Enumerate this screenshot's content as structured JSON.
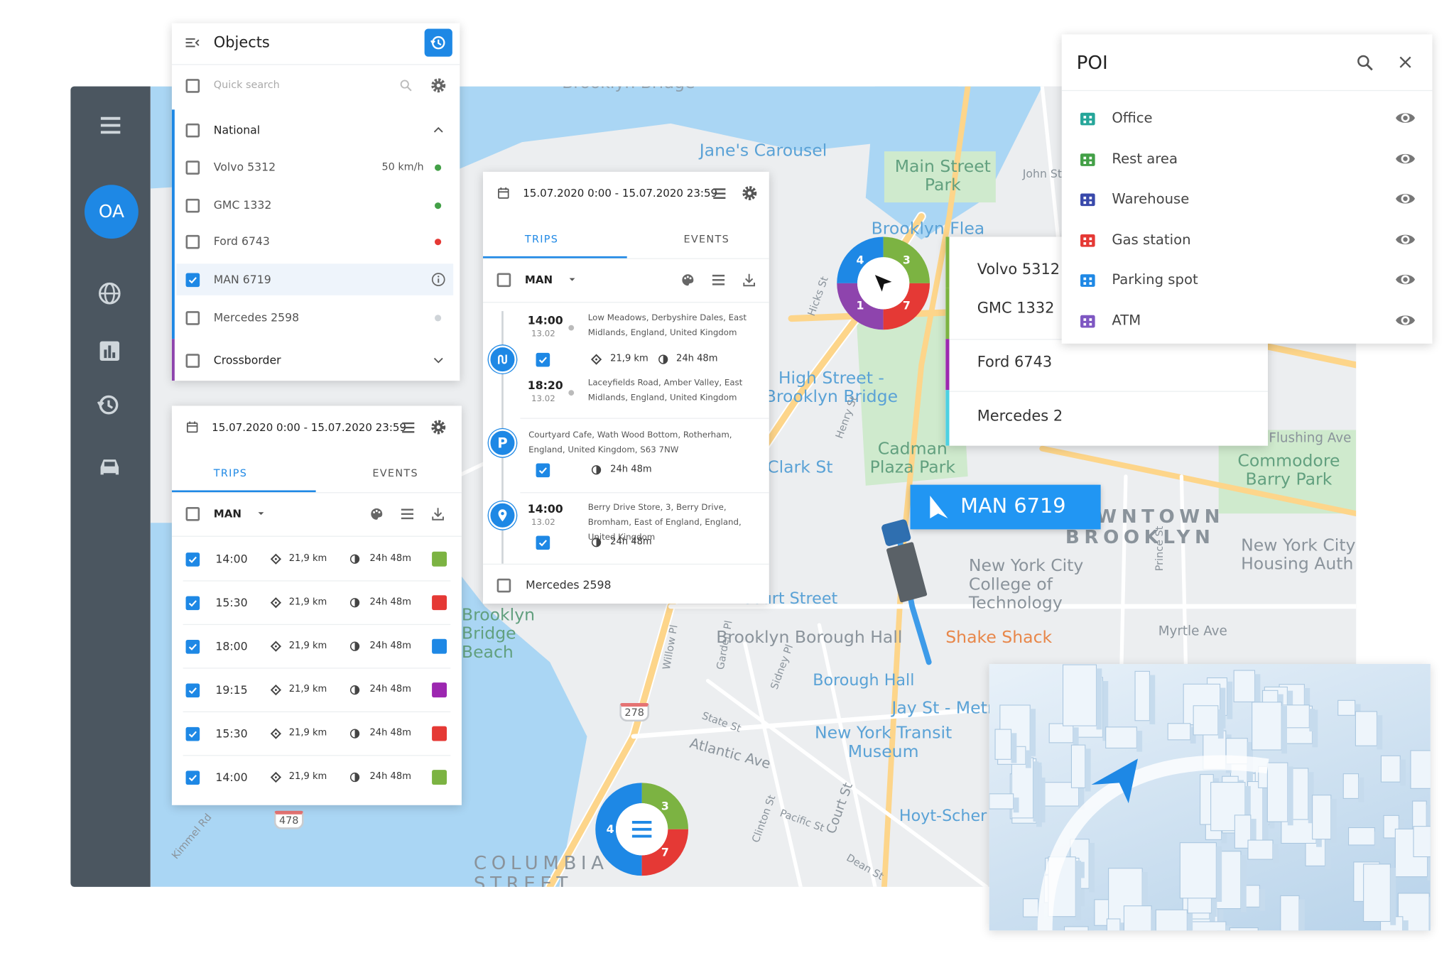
{
  "sidebar": {
    "avatar": "OA"
  },
  "objects": {
    "title": "Objects",
    "search": "Quick search",
    "groups": [
      {
        "name": "National",
        "color": "#1e88e5"
      },
      {
        "name": "Crossborder",
        "color": "#8e44ad"
      }
    ],
    "vehicles": [
      {
        "name": "Volvo 5312",
        "speed": "50 km/h",
        "status": "#43a047"
      },
      {
        "name": "GMC 1332",
        "status": "#43a047"
      },
      {
        "name": "Ford 6743",
        "status": "#e53935"
      },
      {
        "name": "MAN 6719",
        "selected": true
      },
      {
        "name": "Mercedes 2598",
        "status": "#cfd4d8"
      }
    ]
  },
  "trips_left": {
    "date_range": "15.07.2020 0:00 - 15.07.2020 23:59",
    "tabs": [
      "TRIPS",
      "EVENTS"
    ],
    "vehicle": "MAN",
    "trips": [
      {
        "time": "14:00",
        "distance": "21,9 km",
        "duration": "24h 48m",
        "color": "#7cb342"
      },
      {
        "time": "15:30",
        "distance": "21,9 km",
        "duration": "24h 48m",
        "color": "#e53935"
      },
      {
        "time": "18:00",
        "distance": "21,9 km",
        "duration": "24h 48m",
        "color": "#1e88e5"
      },
      {
        "time": "19:15",
        "distance": "21,9 km",
        "duration": "24h 48m",
        "color": "#9c27b0"
      },
      {
        "time": "15:30",
        "distance": "21,9 km",
        "duration": "24h 48m",
        "color": "#e53935"
      },
      {
        "time": "14:00",
        "distance": "21,9 km",
        "duration": "24h 48m",
        "color": "#7cb342"
      }
    ]
  },
  "trips_mid": {
    "date_range": "15.07.2020 0:00 - 15.07.2020 23:59",
    "tabs": [
      "TRIPS",
      "EVENTS"
    ],
    "vehicle": "MAN",
    "trip": {
      "start_time": "14:00",
      "start_date": "13.02",
      "start_address": "Low Meadows, Derbyshire Dales, East Midlands, England, United Kingdom",
      "distance": "21,9 km",
      "duration": "24h 48m",
      "end_time": "18:20",
      "end_date": "13.02",
      "end_address": "Laceyfields Road, Amber Valley, East Midlands, England, United Kingdom"
    },
    "parking": {
      "badge": "P",
      "address": "Courtyard Cafe, Wath Wood Bottom, Rotherham, England, United Kingdom, S63 7NW",
      "duration": "24h 48m"
    },
    "stop": {
      "time": "14:00",
      "date": "13.02",
      "address": "Berry Drive Store, 3, Berry Drive, Bromham, East of England, England, United Kingdom",
      "duration": "24h 48m"
    },
    "footer_vehicle": "Mercedes 2598"
  },
  "vehicle_list": [
    {
      "name": "Volvo 5312",
      "color": "#7cb342"
    },
    {
      "name": "GMC 1332",
      "color": "#7cb342"
    },
    {
      "name": "Ford 6743",
      "color": "#9c27b0"
    },
    {
      "name": "Mercedes 2",
      "color": "#4dd0e1"
    }
  ],
  "poi": {
    "title": "POI",
    "items": [
      {
        "name": "Office",
        "color": "#26a69a"
      },
      {
        "name": "Rest area",
        "color": "#43a047"
      },
      {
        "name": "Warehouse",
        "color": "#3949ab"
      },
      {
        "name": "Gas station",
        "color": "#e53935"
      },
      {
        "name": "Parking spot",
        "color": "#1e88e5"
      },
      {
        "name": "ATM",
        "color": "#7e57c2"
      }
    ]
  },
  "vehicle_tag": "MAN 6719",
  "clusters": [
    {
      "labels": [
        "4",
        "3",
        "1",
        "7"
      ]
    },
    {
      "labels": [
        "3",
        "4",
        "7"
      ]
    }
  ],
  "road_shields": [
    "278",
    "478"
  ],
  "map_labels": [
    "Brooklyn Bridge",
    "Jane's Carousel",
    "Main Street Park",
    "John St",
    "Brooklyn Flea",
    "High Street - Brooklyn Bridge",
    "Cadman Plaza Park",
    "Clark St",
    "DOWNTOWN BROOKLYN",
    "Flushing Ave",
    "Commodore Barry Park",
    "New York City Housing Auth",
    "New York City College of Technology",
    "Court Street",
    "Brooklyn Borough Hall",
    "Shake Shack",
    "Myrtle Ave",
    "Borough Hall",
    "Jay St - Metr",
    "New York Transit Museum",
    "Hoyt-Scher",
    "Atlantic Ave",
    "COLUMBIA STREET",
    "Brooklyn Bridge Beach",
    "Hicks St",
    "Henry St",
    "Willow Pl",
    "Garden Pl",
    "State St",
    "Sidney Pl",
    "Pacific St",
    "Court St",
    "Clinton St",
    "Dean St",
    "Prince St",
    "Kimmel Rd"
  ]
}
